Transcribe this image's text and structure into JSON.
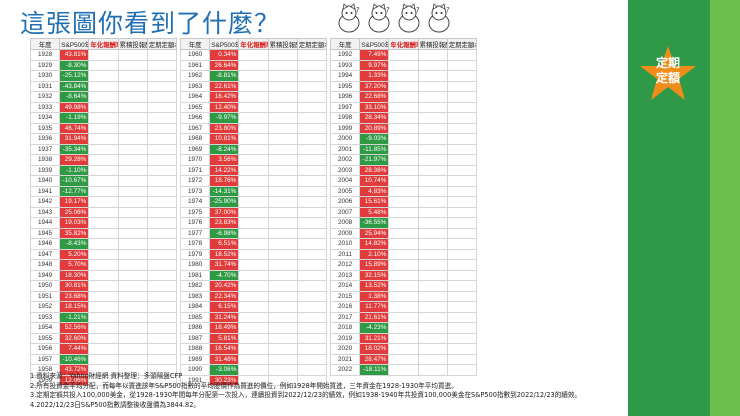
{
  "title": "這張圖你看到了什麼？",
  "badge": [
    "定期",
    "定額"
  ],
  "headers": [
    "年度",
    "S&P500年度績效",
    "年化報酬率",
    "累積投報酬率",
    "定期定額本利和"
  ],
  "tables": [
    [
      [
        "1928",
        "43.81%",
        "",
        "",
        ""
      ],
      [
        "1929",
        "-8.30%",
        "",
        "",
        ""
      ],
      [
        "1930",
        "-25.12%",
        "",
        "",
        ""
      ],
      [
        "1931",
        "-43.84%",
        "",
        "",
        ""
      ],
      [
        "1932",
        "-8.64%",
        "",
        "",
        ""
      ],
      [
        "1933",
        "49.98%",
        "",
        "",
        ""
      ],
      [
        "1934",
        "-1.19%",
        "",
        "",
        ""
      ],
      [
        "1935",
        "46.74%",
        "",
        "",
        ""
      ],
      [
        "1936",
        "31.94%",
        "",
        "",
        ""
      ],
      [
        "1937",
        "-35.34%",
        "",
        "",
        ""
      ],
      [
        "1938",
        "29.28%",
        "",
        "",
        ""
      ],
      [
        "1939",
        "-1.10%",
        "",
        "",
        ""
      ],
      [
        "1940",
        "-10.67%",
        "",
        "",
        ""
      ],
      [
        "1941",
        "-12.77%",
        "",
        "",
        ""
      ],
      [
        "1942",
        "19.17%",
        "",
        "",
        ""
      ],
      [
        "1943",
        "25.06%",
        "",
        "",
        ""
      ],
      [
        "1944",
        "19.03%",
        "",
        "",
        ""
      ],
      [
        "1945",
        "35.82%",
        "",
        "",
        ""
      ],
      [
        "1946",
        "-8.43%",
        "",
        "",
        ""
      ],
      [
        "1947",
        "5.20%",
        "",
        "",
        ""
      ],
      [
        "1948",
        "5.70%",
        "",
        "",
        ""
      ],
      [
        "1949",
        "18.30%",
        "",
        "",
        ""
      ],
      [
        "1950",
        "30.81%",
        "",
        "",
        ""
      ],
      [
        "1951",
        "23.68%",
        "",
        "",
        ""
      ],
      [
        "1952",
        "18.15%",
        "",
        "",
        ""
      ],
      [
        "1953",
        "-1.21%",
        "",
        "",
        ""
      ],
      [
        "1954",
        "52.56%",
        "",
        "",
        ""
      ],
      [
        "1955",
        "32.60%",
        "",
        "",
        ""
      ],
      [
        "1956",
        "7.44%",
        "",
        "",
        ""
      ],
      [
        "1957",
        "-10.46%",
        "",
        "",
        ""
      ],
      [
        "1958",
        "43.72%",
        "",
        "",
        ""
      ],
      [
        "1959",
        "12.06%",
        "",
        "",
        ""
      ]
    ],
    [
      [
        "1960",
        "0.34%",
        "",
        "",
        ""
      ],
      [
        "1961",
        "26.64%",
        "",
        "",
        ""
      ],
      [
        "1962",
        "-8.81%",
        "",
        "",
        ""
      ],
      [
        "1963",
        "22.61%",
        "",
        "",
        ""
      ],
      [
        "1964",
        "16.42%",
        "",
        "",
        ""
      ],
      [
        "1965",
        "12.40%",
        "",
        "",
        ""
      ],
      [
        "1966",
        "-9.97%",
        "",
        "",
        ""
      ],
      [
        "1967",
        "23.80%",
        "",
        "",
        ""
      ],
      [
        "1968",
        "10.81%",
        "",
        "",
        ""
      ],
      [
        "1969",
        "-8.24%",
        "",
        "",
        ""
      ],
      [
        "1970",
        "3.56%",
        "",
        "",
        ""
      ],
      [
        "1971",
        "14.22%",
        "",
        "",
        ""
      ],
      [
        "1972",
        "18.76%",
        "",
        "",
        ""
      ],
      [
        "1973",
        "-14.31%",
        "",
        "",
        ""
      ],
      [
        "1974",
        "-25.90%",
        "",
        "",
        ""
      ],
      [
        "1975",
        "37.00%",
        "",
        "",
        ""
      ],
      [
        "1976",
        "23.83%",
        "",
        "",
        ""
      ],
      [
        "1977",
        "-6.98%",
        "",
        "",
        ""
      ],
      [
        "1978",
        "6.51%",
        "",
        "",
        ""
      ],
      [
        "1979",
        "18.52%",
        "",
        "",
        ""
      ],
      [
        "1980",
        "31.74%",
        "",
        "",
        ""
      ],
      [
        "1981",
        "-4.70%",
        "",
        "",
        ""
      ],
      [
        "1982",
        "20.42%",
        "",
        "",
        ""
      ],
      [
        "1983",
        "22.34%",
        "",
        "",
        ""
      ],
      [
        "1984",
        "6.15%",
        "",
        "",
        ""
      ],
      [
        "1985",
        "31.24%",
        "",
        "",
        ""
      ],
      [
        "1986",
        "18.49%",
        "",
        "",
        ""
      ],
      [
        "1987",
        "5.81%",
        "",
        "",
        ""
      ],
      [
        "1988",
        "16.54%",
        "",
        "",
        ""
      ],
      [
        "1989",
        "31.48%",
        "",
        "",
        ""
      ],
      [
        "1990",
        "-3.06%",
        "",
        "",
        ""
      ],
      [
        "1991",
        "30.23%",
        "",
        "",
        ""
      ]
    ],
    [
      [
        "1992",
        "7.49%",
        "",
        "",
        ""
      ],
      [
        "1993",
        "9.97%",
        "",
        "",
        ""
      ],
      [
        "1994",
        "1.33%",
        "",
        "",
        ""
      ],
      [
        "1995",
        "37.20%",
        "",
        "",
        ""
      ],
      [
        "1996",
        "22.68%",
        "",
        "",
        ""
      ],
      [
        "1997",
        "33.10%",
        "",
        "",
        ""
      ],
      [
        "1998",
        "28.34%",
        "",
        "",
        ""
      ],
      [
        "1999",
        "20.89%",
        "",
        "",
        ""
      ],
      [
        "2000",
        "-9.03%",
        "",
        "",
        ""
      ],
      [
        "2001",
        "-11.85%",
        "",
        "",
        ""
      ],
      [
        "2002",
        "-21.97%",
        "",
        "",
        ""
      ],
      [
        "2003",
        "28.36%",
        "",
        "",
        ""
      ],
      [
        "2004",
        "10.74%",
        "",
        "",
        ""
      ],
      [
        "2005",
        "4.83%",
        "",
        "",
        ""
      ],
      [
        "2006",
        "15.61%",
        "",
        "",
        ""
      ],
      [
        "2007",
        "5.48%",
        "",
        "",
        ""
      ],
      [
        "2008",
        "-36.55%",
        "",
        "",
        ""
      ],
      [
        "2009",
        "25.94%",
        "",
        "",
        ""
      ],
      [
        "2010",
        "14.82%",
        "",
        "",
        ""
      ],
      [
        "2011",
        "2.10%",
        "",
        "",
        ""
      ],
      [
        "2012",
        "15.89%",
        "",
        "",
        ""
      ],
      [
        "2013",
        "32.15%",
        "",
        "",
        ""
      ],
      [
        "2014",
        "13.52%",
        "",
        "",
        ""
      ],
      [
        "2015",
        "1.38%",
        "",
        "",
        ""
      ],
      [
        "2016",
        "11.77%",
        "",
        "",
        ""
      ],
      [
        "2017",
        "21.61%",
        "",
        "",
        ""
      ],
      [
        "2018",
        "-4.23%",
        "",
        "",
        ""
      ],
      [
        "2019",
        "31.21%",
        "",
        "",
        ""
      ],
      [
        "2020",
        "18.02%",
        "",
        "",
        ""
      ],
      [
        "2021",
        "28.47%",
        "",
        "",
        ""
      ],
      [
        "2022",
        "-18.11%",
        "",
        "",
        ""
      ]
    ]
  ],
  "notes": [
    "1.資料來源：Yahoo財經網 資料整理：多頭陽盤CFP",
    "2.所有投資金平均分配，而每年以買進該年S&P500指數的平均股價作為買進的價位，例如1928年開始買進，三年資金在1928-1930年平均買進。",
    "3.定期定額共投入100,000美金，從1928-1930年間每年分配第一次投入，連續投資到2022/12/23的績效，例如1938-1940年共投資100,000美金在S&P500指數到2022/12/23的績效。",
    "4.2022/12/23日S&P500指數調整後收盤價為3844.82。"
  ]
}
